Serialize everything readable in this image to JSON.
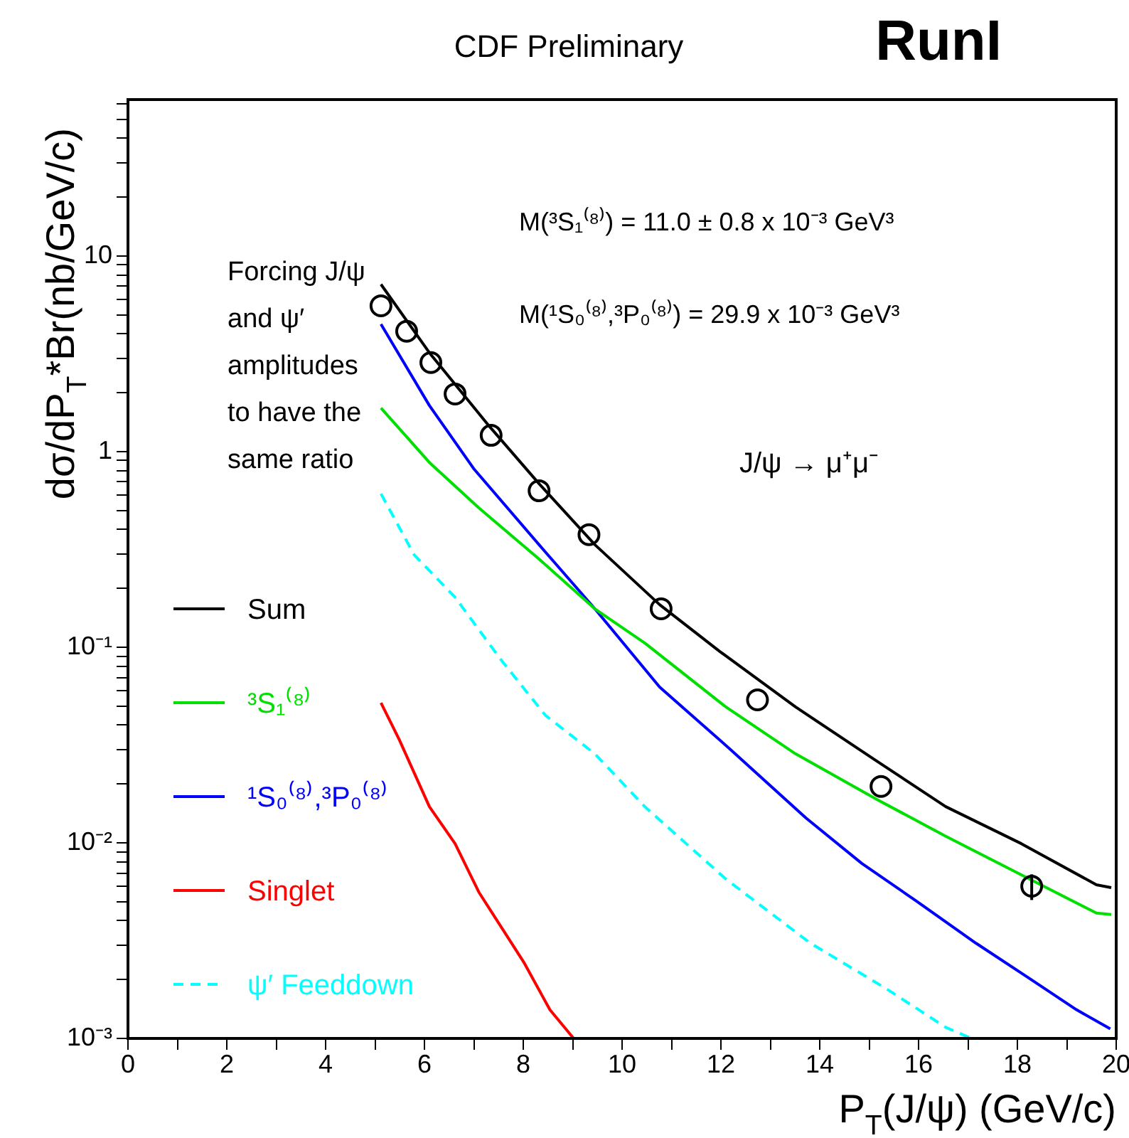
{
  "chart_data": {
    "type": "line",
    "title": "CDF Preliminary",
    "xlabel": "P$_{T}$(J/ψ) (GeV/c)",
    "ylabel": "dσ/dP$_{T}$*Br(nb/GeV/c)",
    "annotations": [
      "RunI",
      "M(³S₁⁽⁸⁾) = 11.0 ± 0.8 x 10⁻³ GeV³",
      "M(¹S₀⁽⁸⁾,³P₀⁽⁸⁾) = 29.9 x 10⁻³ GeV³",
      "J/ψ → μ⁺μ⁻",
      "Forcing J/ψ and ψ′ amplitudes to have the same ratio"
    ],
    "log": "y",
    "xlim": [
      0,
      20
    ],
    "ylim": [
      0.001,
      63
    ],
    "xticks": [
      0,
      {
        "value": 1,
        "label": null
      },
      2,
      {
        "value": 3,
        "label": null
      },
      4,
      {
        "value": 5,
        "label": null
      },
      6,
      {
        "value": 7,
        "label": null
      },
      8,
      {
        "value": 9,
        "label": null
      },
      10,
      {
        "value": 11,
        "label": null
      },
      12,
      {
        "value": 13,
        "label": null
      },
      14,
      {
        "value": 15,
        "label": null
      },
      16,
      {
        "value": 17,
        "label": null
      },
      18,
      {
        "value": 19,
        "label": null
      },
      20
    ],
    "yticks": [
      {
        "value": 0.001,
        "label": "10⁻³"
      },
      {
        "value": 0.002,
        "label": null
      },
      {
        "value": 0.003,
        "label": null
      },
      {
        "value": 0.004,
        "label": null
      },
      {
        "value": 0.005,
        "label": null
      },
      {
        "value": 0.006,
        "label": null
      },
      {
        "value": 0.007,
        "label": null
      },
      {
        "value": 0.008,
        "label": null
      },
      {
        "value": 0.009,
        "label": null
      },
      {
        "value": 0.01,
        "label": "10⁻²"
      },
      {
        "value": 0.02,
        "label": null
      },
      {
        "value": 0.03,
        "label": null
      },
      {
        "value": 0.04,
        "label": null
      },
      {
        "value": 0.05,
        "label": null
      },
      {
        "value": 0.06,
        "label": null
      },
      {
        "value": 0.07,
        "label": null
      },
      {
        "value": 0.08,
        "label": null
      },
      {
        "value": 0.09,
        "label": null
      },
      {
        "value": 0.1,
        "label": "10⁻¹"
      },
      {
        "value": 0.2,
        "label": null
      },
      {
        "value": 0.3,
        "label": null
      },
      {
        "value": 0.4,
        "label": null
      },
      {
        "value": 0.5,
        "label": null
      },
      {
        "value": 0.6,
        "label": null
      },
      {
        "value": 0.7,
        "label": null
      },
      {
        "value": 0.8,
        "label": null
      },
      {
        "value": 0.9,
        "label": null
      },
      1,
      {
        "value": 2,
        "label": null
      },
      {
        "value": 3,
        "label": null
      },
      {
        "value": 4,
        "label": null
      },
      {
        "value": 5,
        "label": null
      },
      {
        "value": 6,
        "label": null
      },
      {
        "value": 7,
        "label": null
      },
      {
        "value": 8,
        "label": null
      },
      {
        "value": 9,
        "label": null
      },
      10,
      {
        "value": 20,
        "label": null
      },
      {
        "value": 30,
        "label": null
      },
      {
        "value": 40,
        "label": null
      },
      {
        "value": 50,
        "label": null
      },
      {
        "value": 60,
        "label": null
      }
    ],
    "grid": false,
    "legend": "bottom left",
    "series": [
      {
        "name": "Sum",
        "color": "#000000",
        "marker": "none",
        "line_style": "solid",
        "x": [
          5.12,
          6.1,
          7.32,
          8.32,
          9.45,
          10.76,
          11.98,
          13.51,
          15.15,
          16.55,
          18.08,
          19.6,
          19.9
        ],
        "values": [
          7.16,
          3.2,
          1.34,
          0.685,
          0.334,
          0.165,
          0.095,
          0.0495,
          0.0262,
          0.0153,
          0.0099,
          0.0061,
          0.0059
        ]
      },
      {
        "name": "³S₁⁽⁸⁾",
        "color": "#00e000",
        "marker": "none",
        "line_style": "solid",
        "x": [
          5.12,
          6.1,
          7.1,
          8.32,
          9.45,
          10.46,
          12.1,
          13.51,
          15.15,
          16.55,
          18.08,
          19.6,
          19.9
        ],
        "values": [
          1.67,
          0.88,
          0.516,
          0.282,
          0.157,
          0.105,
          0.0495,
          0.0285,
          0.0167,
          0.0108,
          0.00686,
          0.00437,
          0.0043
        ]
      },
      {
        "name": "¹S₀⁽⁸⁾,³P₀⁽⁸⁾",
        "color": "#0000ff",
        "marker": "none",
        "line_style": "solid",
        "x": [
          5.12,
          6.1,
          7.01,
          8.32,
          9.45,
          10.76,
          12.2,
          13.72,
          14.85,
          15.94,
          17.16,
          18.2,
          19.2,
          19.88
        ],
        "values": [
          4.48,
          1.72,
          0.81,
          0.334,
          0.157,
          0.0625,
          0.0299,
          0.0134,
          0.00785,
          0.00507,
          0.00307,
          0.00206,
          0.0014,
          0.00112
        ]
      },
      {
        "name": "Singlet",
        "color": "#ff0000",
        "marker": "none",
        "line_style": "solid",
        "x": [
          5.12,
          5.49,
          6.1,
          6.62,
          7.1,
          8.02,
          8.54,
          9.02
        ],
        "values": [
          0.052,
          0.0337,
          0.0153,
          0.0099,
          0.0056,
          0.00243,
          0.0014,
          0.001
        ]
      },
      {
        "name": "ψ′ Feeddown",
        "color": "#00ffff",
        "marker": "none",
        "line_style": "dashed",
        "x": [
          5.12,
          5.79,
          6.62,
          7.53,
          8.45,
          9.45,
          10.46,
          12.1,
          13.81,
          15.34,
          16.55,
          17.07
        ],
        "values": [
          0.609,
          0.297,
          0.18,
          0.0875,
          0.0448,
          0.0285,
          0.0153,
          0.00653,
          0.00307,
          0.0018,
          0.00114,
          0.001
        ]
      },
      {
        "type": "scatter",
        "color": "#000000",
        "marker": "circle",
        "x": [
          5.12,
          5.64,
          6.13,
          6.62,
          7.35,
          8.32,
          9.33,
          10.79,
          12.74,
          15.24,
          18.29
        ],
        "values": [
          5.56,
          4.12,
          2.85,
          1.97,
          1.21,
          0.63,
          0.376,
          0.157,
          0.0538,
          0.0194,
          0.006
        ],
        "errors": [
          null,
          null,
          null,
          null,
          null,
          null,
          null,
          null,
          null,
          null,
          [
            0.0051,
            0.0069
          ]
        ]
      }
    ]
  }
}
